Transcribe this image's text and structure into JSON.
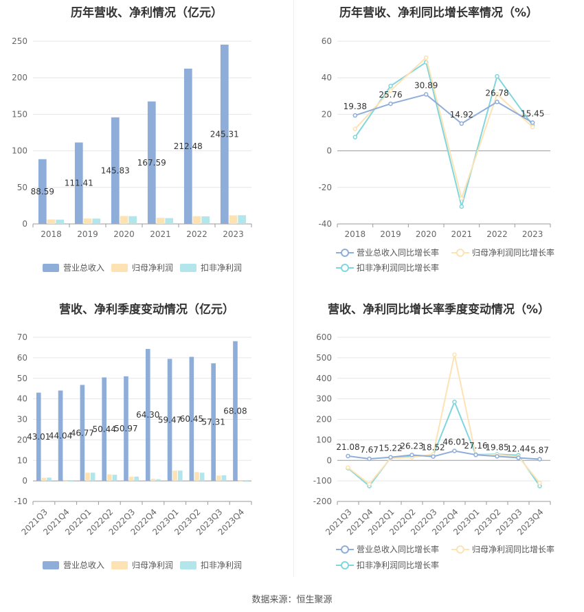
{
  "source": "数据来源：恒生聚源",
  "colors": {
    "revenue": "#8eadd9",
    "netprofit": "#fde2b4",
    "deducted": "#b3e6ea",
    "line_rev": "#8eadd9",
    "line_np": "#fde2b4",
    "line_ded": "#7fd6dc"
  },
  "charts": [
    {
      "id": "annual-amount",
      "title": "历年营收、净利情况（亿元）",
      "type": "bar",
      "categories": [
        "2018",
        "2019",
        "2020",
        "2021",
        "2022",
        "2023"
      ],
      "ylim": [
        0,
        250
      ],
      "yticks": [
        0,
        50,
        100,
        150,
        200,
        250
      ],
      "series": [
        {
          "name": "营业总收入",
          "values": [
            88.59,
            111.41,
            145.83,
            167.59,
            212.48,
            245.31
          ]
        },
        {
          "name": "归母净利润",
          "values": [
            6.2,
            7.4,
            10.9,
            8.3,
            10.6,
            11.8
          ]
        },
        {
          "name": "扣非净利润",
          "values": [
            5.9,
            7.3,
            10.6,
            7.9,
            10.4,
            11.9
          ]
        }
      ],
      "data_labels": [
        "88.59",
        "111.41",
        "145.83",
        "167.59",
        "212.48",
        "245.31"
      ]
    },
    {
      "id": "annual-growth",
      "title": "历年营收、净利同比增长率情况（%）",
      "type": "line",
      "categories": [
        "2018",
        "2019",
        "2020",
        "2021",
        "2022",
        "2023"
      ],
      "ylim": [
        -40,
        60
      ],
      "yticks": [
        -40,
        -20,
        0,
        20,
        40,
        60
      ],
      "series": [
        {
          "name": "营业总收入同比增长率",
          "values": [
            19.38,
            25.76,
            30.89,
            14.92,
            26.78,
            15.45
          ]
        },
        {
          "name": "归母净利润同比增长率",
          "values": [
            12,
            33,
            51,
            -26,
            31,
            13
          ]
        },
        {
          "name": "扣非净利润同比增长率",
          "values": [
            7.5,
            35.5,
            48.5,
            -30.5,
            40.8,
            14
          ]
        }
      ],
      "data_labels": [
        "19.38",
        "25.76",
        "30.89",
        "14.92",
        "26.78",
        "15.45"
      ]
    },
    {
      "id": "quarterly-amount",
      "title": "营收、净利季度变动情况（亿元）",
      "type": "bar",
      "categories": [
        "2021Q3",
        "2021Q4",
        "2022Q1",
        "2022Q2",
        "2022Q3",
        "2022Q4",
        "2023Q1",
        "2023Q2",
        "2023Q3",
        "2023Q4"
      ],
      "ylim": [
        -10,
        70
      ],
      "yticks": [
        -10,
        0,
        10,
        20,
        30,
        40,
        50,
        60,
        70
      ],
      "series": [
        {
          "name": "营业总收入",
          "values": [
            43.01,
            44.04,
            46.77,
            50.44,
            50.97,
            64.3,
            59.47,
            60.45,
            57.31,
            68.08
          ]
        },
        {
          "name": "归母净利润",
          "values": [
            1.5,
            -0.2,
            4.0,
            3.2,
            2.0,
            1.0,
            5.0,
            4.3,
            2.6,
            -0.3
          ]
        },
        {
          "name": "扣非净利润",
          "values": [
            1.6,
            -0.3,
            4.0,
            3.0,
            2.1,
            0.8,
            5.0,
            4.0,
            2.7,
            -0.4
          ]
        }
      ],
      "data_labels": [
        "43.01",
        "44.04",
        "46.77",
        "50.44",
        "50.97",
        "64.30",
        "59.47",
        "60.45",
        "57.31",
        "68.08"
      ]
    },
    {
      "id": "quarterly-growth",
      "title": "营收、净利同比增长率季度变动情况（%）",
      "type": "line",
      "categories": [
        "2021Q3",
        "2021Q4",
        "2022Q1",
        "2022Q2",
        "2022Q3",
        "2022Q4",
        "2023Q1",
        "2023Q2",
        "2023Q3",
        "2023Q4"
      ],
      "ylim": [
        -200,
        600
      ],
      "yticks": [
        -200,
        -100,
        0,
        100,
        200,
        300,
        400,
        500,
        600
      ],
      "series": [
        {
          "name": "营业总收入同比增长率",
          "values": [
            21.08,
            7.67,
            15.22,
            26.23,
            18.52,
            46.01,
            27.16,
            19.85,
            12.44,
            5.87
          ]
        },
        {
          "name": "归母净利润同比增长率",
          "values": [
            -35,
            -115,
            10,
            15,
            30,
            515,
            25,
            28,
            18,
            -110
          ]
        },
        {
          "name": "扣非净利润同比增长率",
          "values": [
            -38,
            -125,
            12,
            20,
            25,
            285,
            28,
            30,
            25,
            -125
          ]
        }
      ],
      "data_labels": [
        "21.08",
        "7.67",
        "15.22",
        "26.23",
        "18.52",
        "46.01",
        "27.16",
        "19.85",
        "12.44",
        "5.87"
      ]
    }
  ]
}
